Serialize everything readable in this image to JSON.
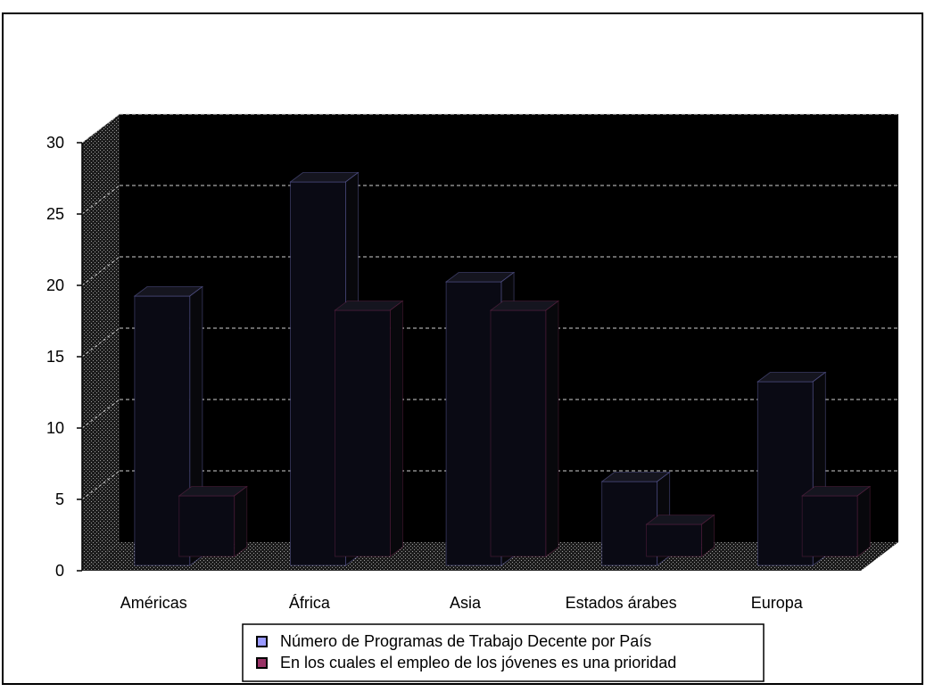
{
  "chart_data": {
    "type": "bar",
    "title": "",
    "xlabel": "",
    "ylabel": "",
    "categories": [
      "Américas",
      "África",
      "Asia",
      "Estados árabes",
      "Europa"
    ],
    "series": [
      {
        "name": "Número de Programas de Trabajo Decente por País",
        "values": [
          19,
          27,
          20,
          6,
          13
        ],
        "color": "#9999ff"
      },
      {
        "name": "En los cuales el empleo de los jóvenes es una prioridad",
        "values": [
          4,
          17,
          17,
          2,
          4
        ],
        "color": "#993366"
      }
    ],
    "ylim": [
      0,
      30
    ],
    "yticks": [
      "0",
      "5",
      "10",
      "15",
      "20",
      "25",
      "30"
    ],
    "grid": true,
    "legend_position": "bottom"
  },
  "colors": {
    "plot_background": "#000000",
    "border": "#000000",
    "bar_dark": "#0a0a14"
  }
}
